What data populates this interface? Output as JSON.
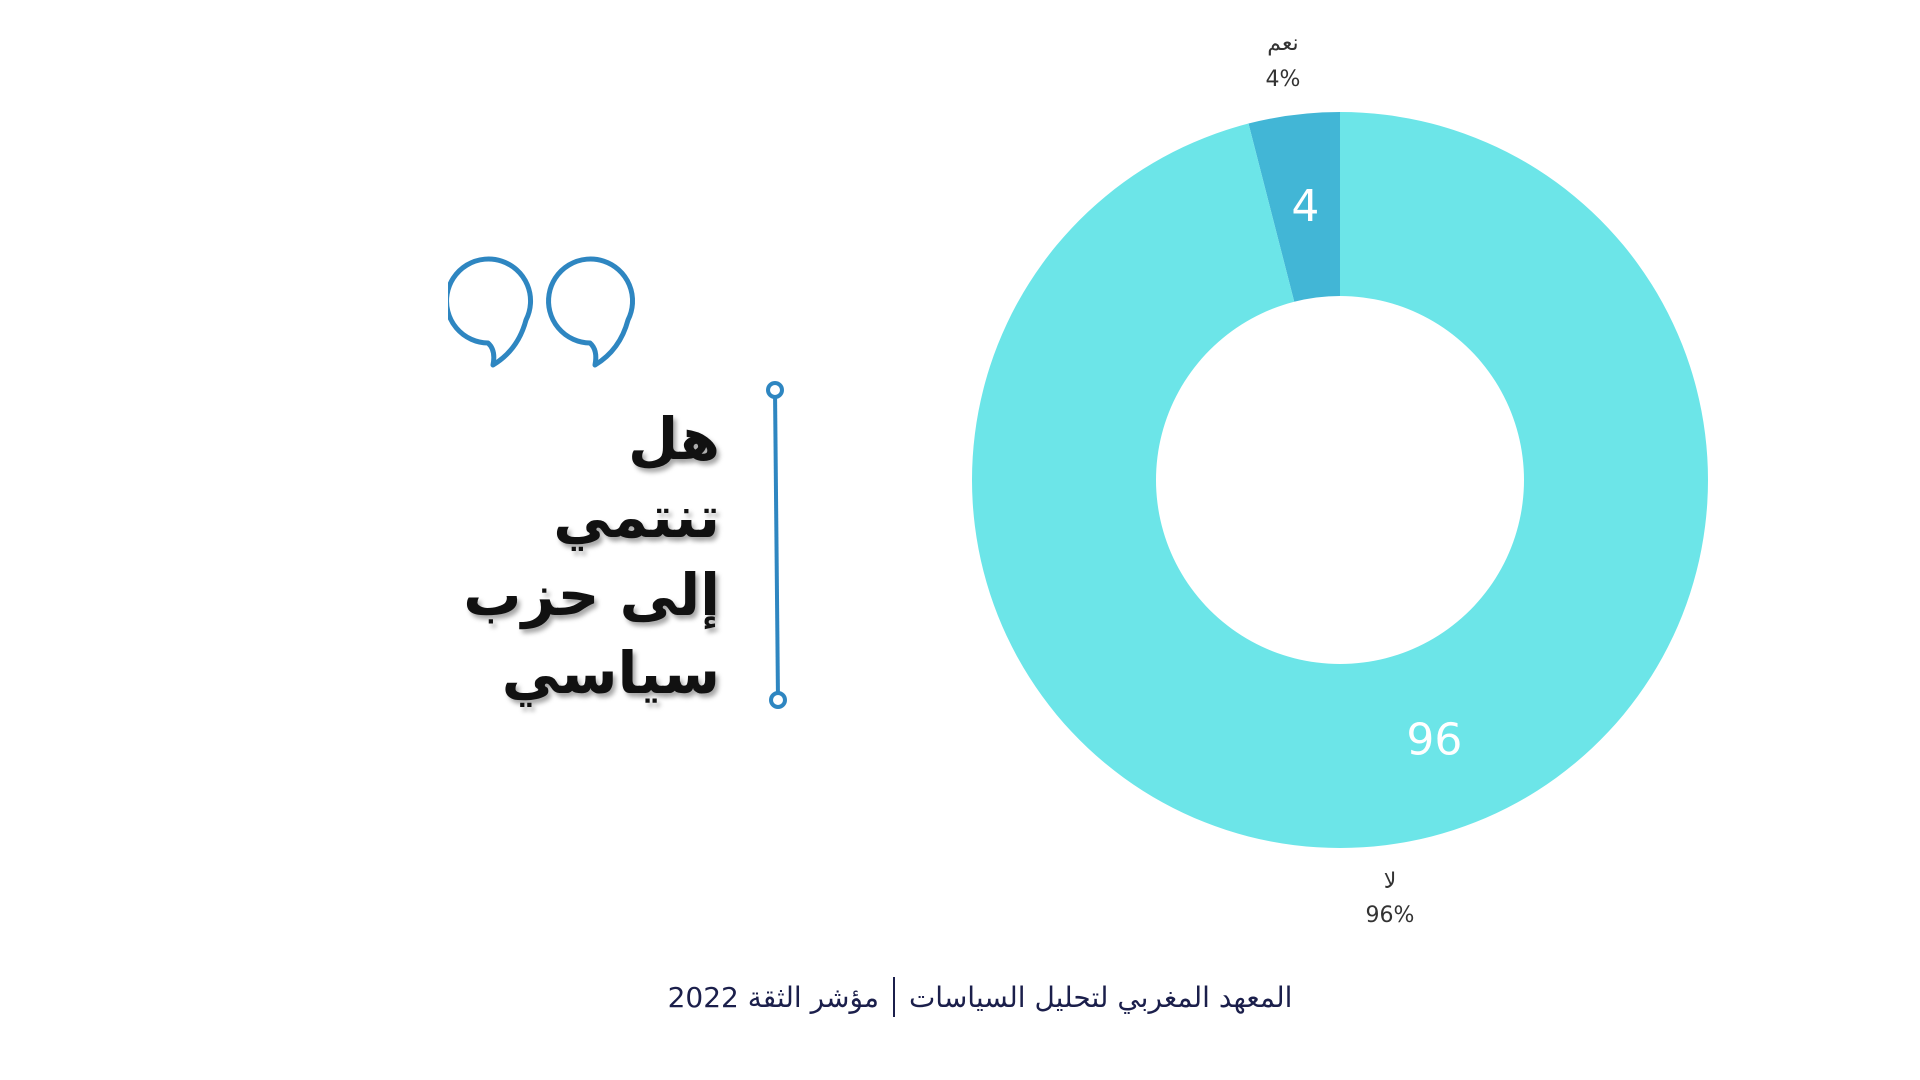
{
  "question": {
    "lines": [
      "هل",
      "تنتمي",
      "إلى حزب",
      "سياسي"
    ]
  },
  "footer": {
    "institute": "المعهد المغربي لتحليل السياسات",
    "report": "مؤشر الثقة 2022"
  },
  "colors": {
    "no": "#6ce5e8",
    "yes": "#42b6d6",
    "accent": "#2e86c1",
    "text": "#111111"
  },
  "chart_data": {
    "type": "pie",
    "donut": true,
    "slices": [
      {
        "label": "نعم",
        "value": 4,
        "percent_label": "4%",
        "inner_label": "4"
      },
      {
        "label": "لا",
        "value": 96,
        "percent_label": "96%",
        "inner_label": "96"
      }
    ]
  }
}
